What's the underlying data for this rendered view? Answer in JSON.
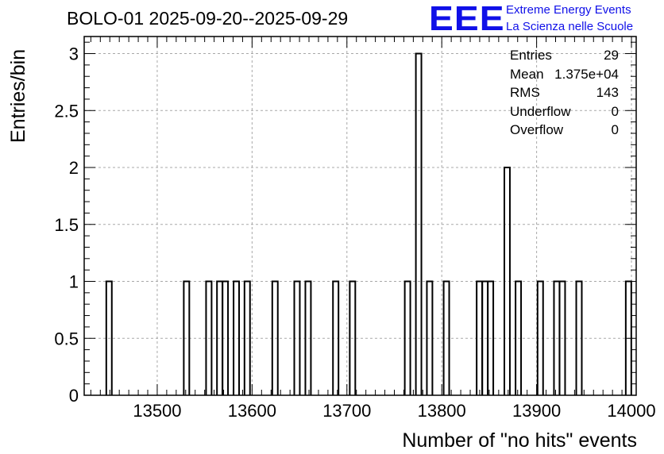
{
  "title": "BOLO-01 2025-09-20--2025-09-29",
  "logo": {
    "mark": "EEE",
    "line1": "Extreme Energy Events",
    "line2": "La Scienza nelle Scuole",
    "color": "#1010e8"
  },
  "stats": [
    {
      "label": "Entries",
      "value": "29"
    },
    {
      "label": "Mean",
      "value": "1.375e+04"
    },
    {
      "label": "RMS",
      "value": "143"
    },
    {
      "label": "Underflow",
      "value": "0"
    },
    {
      "label": "Overflow",
      "value": "0"
    }
  ],
  "chart_data": {
    "type": "histogram",
    "xlabel": "Number of \"no hits\" events",
    "ylabel": "Entries/bin",
    "xlim": [
      13423,
      14005
    ],
    "ylim": [
      0,
      3.15
    ],
    "bin_width": 5.82,
    "xticks": [
      13500,
      13600,
      13700,
      13800,
      13900,
      14000
    ],
    "yticks": [
      0,
      0.5,
      1,
      1.5,
      2,
      2.5,
      3
    ],
    "ytick_labels": [
      "0",
      "0.5",
      "1",
      "1.5",
      "2",
      "2.5",
      "3"
    ],
    "grid": true,
    "bins": [
      {
        "x": 13446.3,
        "count": 1
      },
      {
        "x": 13528.0,
        "count": 1
      },
      {
        "x": 13551.5,
        "count": 1
      },
      {
        "x": 13563.0,
        "count": 1
      },
      {
        "x": 13568.8,
        "count": 1
      },
      {
        "x": 13580.5,
        "count": 1
      },
      {
        "x": 13592.0,
        "count": 1
      },
      {
        "x": 13621.3,
        "count": 1
      },
      {
        "x": 13644.5,
        "count": 1
      },
      {
        "x": 13656.2,
        "count": 1
      },
      {
        "x": 13685.3,
        "count": 1
      },
      {
        "x": 13703.0,
        "count": 1
      },
      {
        "x": 13761.0,
        "count": 1
      },
      {
        "x": 13772.7,
        "count": 3
      },
      {
        "x": 13784.3,
        "count": 1
      },
      {
        "x": 13802.0,
        "count": 1
      },
      {
        "x": 13836.8,
        "count": 1
      },
      {
        "x": 13842.7,
        "count": 1
      },
      {
        "x": 13848.5,
        "count": 1
      },
      {
        "x": 13866.0,
        "count": 2
      },
      {
        "x": 13877.8,
        "count": 1
      },
      {
        "x": 13901.0,
        "count": 1
      },
      {
        "x": 13918.3,
        "count": 1
      },
      {
        "x": 13924.2,
        "count": 1
      },
      {
        "x": 13941.8,
        "count": 1
      },
      {
        "x": 13994.0,
        "count": 1
      }
    ]
  }
}
